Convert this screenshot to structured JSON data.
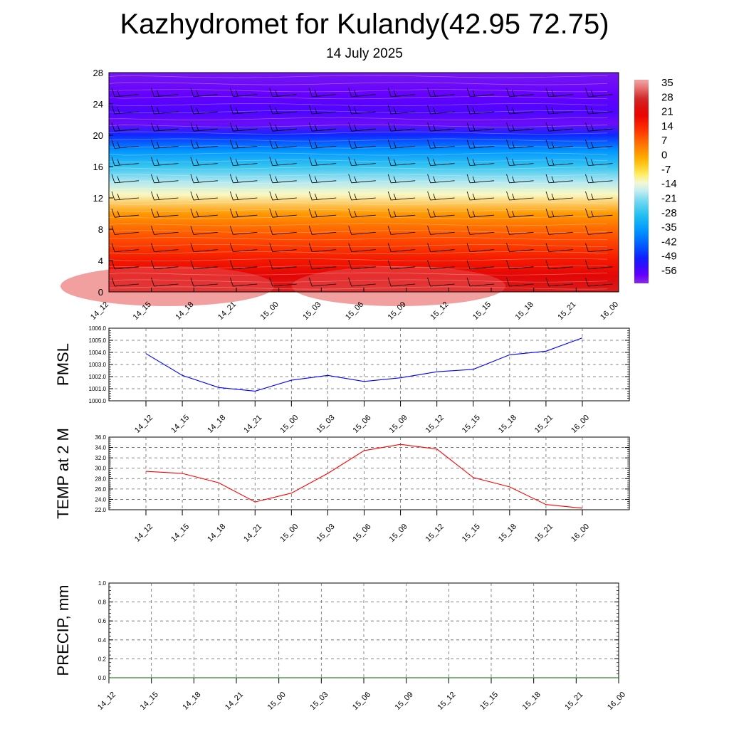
{
  "header": {
    "title": "Kazhydromet for Kulandy(42.95 72.75)",
    "subtitle": "14 July 2025"
  },
  "chart_data": [
    {
      "id": "cross-section",
      "type": "heatmap",
      "title": "",
      "xlabel": "",
      "ylabel": "",
      "x_ticks": [
        "14_12",
        "14_15",
        "14_18",
        "14_21",
        "15_00",
        "15_03",
        "15_06",
        "15_09",
        "15_12",
        "15_15",
        "15_18",
        "15_21",
        "16_00"
      ],
      "y_ticks": [
        0,
        4,
        8,
        12,
        16,
        20,
        24,
        28
      ],
      "ylim": [
        0,
        28
      ],
      "colorbar": {
        "labels": [
          "35",
          "28",
          "21",
          "14",
          "7",
          "0",
          "-7",
          "-14",
          "-21",
          "-28",
          "-35",
          "-42",
          "-49",
          "-56"
        ],
        "range": [
          -60,
          37
        ]
      },
      "temperature_profile": [
        {
          "level": 0,
          "value": 26
        },
        {
          "level": 2,
          "value": 22
        },
        {
          "level": 4,
          "value": 17
        },
        {
          "level": 7,
          "value": 10
        },
        {
          "level": 10,
          "value": 2
        },
        {
          "level": 12.5,
          "value": -11
        },
        {
          "level": 14,
          "value": -17
        },
        {
          "level": 16,
          "value": -26
        },
        {
          "level": 18,
          "value": -35
        },
        {
          "level": 20,
          "value": -47
        },
        {
          "level": 21.5,
          "value": -57
        },
        {
          "level": 23,
          "value": -54
        },
        {
          "level": 25,
          "value": -56
        },
        {
          "level": 28,
          "value": -58
        }
      ],
      "wind_barbs": "shown",
      "grid": false
    },
    {
      "id": "pmsl",
      "type": "line",
      "ylabel": "PMSL",
      "xlabel": "",
      "categories": [
        "14_12",
        "14_15",
        "14_18",
        "14_21",
        "15_00",
        "15_03",
        "15_06",
        "15_09",
        "15_12",
        "15_15",
        "15_18",
        "15_21",
        "16_00"
      ],
      "values": [
        1003.9,
        1002.1,
        1001.1,
        1000.8,
        1001.7,
        1002.1,
        1001.6,
        1001.9,
        1002.4,
        1002.6,
        1003.8,
        1004.1,
        1005.2
      ],
      "ylim": [
        1000.0,
        1006.0
      ],
      "y_ticks": [
        "1000.0",
        "1001.0",
        "1002.0",
        "1003.0",
        "1004.0",
        "1005.0",
        "1006.0"
      ],
      "color": "#0000ff",
      "grid": true
    },
    {
      "id": "temp2m",
      "type": "line",
      "ylabel": "TEMP at 2 M",
      "xlabel": "",
      "categories": [
        "14_12",
        "14_15",
        "14_18",
        "14_21",
        "15_00",
        "15_03",
        "15_06",
        "15_09",
        "15_12",
        "15_15",
        "15_18",
        "15_21",
        "16_00"
      ],
      "values": [
        29.4,
        29.0,
        27.2,
        23.5,
        25.2,
        29.0,
        33.4,
        34.6,
        33.7,
        28.2,
        26.4,
        23.0,
        22.3
      ],
      "ylim": [
        22.0,
        36.0
      ],
      "y_ticks": [
        "22.0",
        "24.0",
        "26.0",
        "28.0",
        "30.0",
        "32.0",
        "34.0",
        "36.0"
      ],
      "color": "#ff0000",
      "grid": true
    },
    {
      "id": "precip",
      "type": "line",
      "ylabel": "PRECIP, mm",
      "xlabel": "",
      "categories": [
        "14_12",
        "14_15",
        "14_18",
        "14_21",
        "15_00",
        "15_03",
        "15_06",
        "15_09",
        "15_12",
        "15_15",
        "15_18",
        "15_21",
        "16_00"
      ],
      "values": [
        0,
        0,
        0,
        0,
        0,
        0,
        0,
        0,
        0,
        0,
        0,
        0,
        0
      ],
      "ylim": [
        0.0,
        1.0
      ],
      "y_ticks": [
        "0.0",
        "0.2",
        "0.4",
        "0.6",
        "0.8",
        "1.0"
      ],
      "color": "#006400",
      "grid": true
    }
  ]
}
